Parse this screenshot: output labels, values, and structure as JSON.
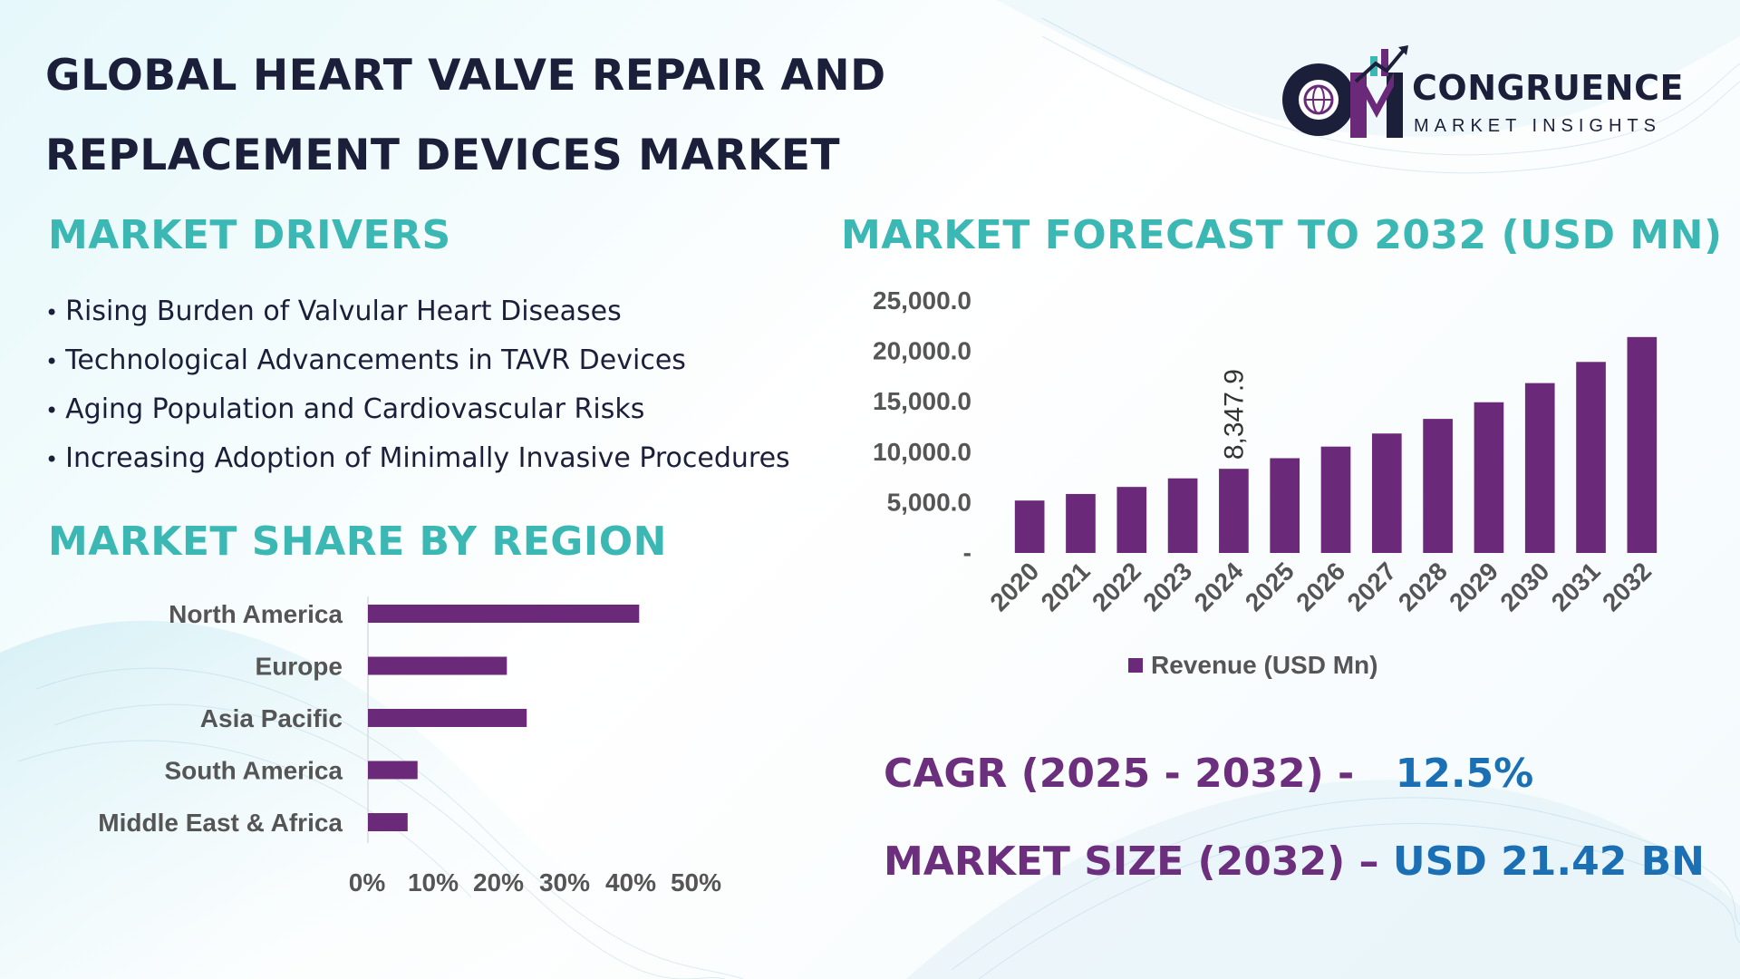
{
  "title": {
    "line1": "GLOBAL HEART VALVE REPAIR AND",
    "line2": "REPLACEMENT DEVICES MARKET"
  },
  "logo": {
    "name": "CONGRUENCE",
    "subtitle": "MARKET INSIGHTS",
    "mark_text": "CM"
  },
  "drivers": {
    "heading": "MARKET DRIVERS",
    "bullet": "•",
    "items": [
      "Rising Burden of Valvular Heart Diseases",
      "Technological Advancements in TAVR Devices",
      "Aging Population and Cardiovascular Risks",
      "Increasing Adoption of Minimally Invasive Procedures"
    ]
  },
  "region": {
    "heading": "MARKET SHARE BY REGION"
  },
  "forecast": {
    "heading": "MARKET FORECAST TO 2032 (USD MN)"
  },
  "kpis": {
    "cagr_label": "CAGR (2025 - 2032) -",
    "cagr_value": "12.5%",
    "size_label": "MARKET SIZE (2032) –",
    "size_value": "USD 21.42 BN"
  },
  "colors": {
    "bar": "#6a2a79",
    "teal": "#3cb8b4",
    "purple_text": "#6c2f7e",
    "blue_text": "#1b6fb4",
    "dark": "#1c1f3a",
    "axis_text": "#555555"
  },
  "chart_data": [
    {
      "type": "bar",
      "orientation": "vertical",
      "title": "MARKET FORECAST TO 2032 (USD MN)",
      "categories": [
        "2020",
        "2021",
        "2022",
        "2023",
        "2024",
        "2025",
        "2026",
        "2027",
        "2028",
        "2029",
        "2030",
        "2031",
        "2032"
      ],
      "series": [
        {
          "name": "Revenue (USD Mn)",
          "values": [
            5200,
            5850,
            6550,
            7400,
            8347.9,
            9400,
            10550,
            11850,
            13300,
            14950,
            16850,
            18950,
            21420
          ]
        }
      ],
      "data_labels": [
        {
          "index": 4,
          "text": "8,347.9"
        }
      ],
      "ylim": [
        0,
        25000
      ],
      "yticks": [
        0,
        5000,
        10000,
        15000,
        20000,
        25000
      ],
      "ytick_labels": [
        "-",
        "5,000.0",
        "10,000.0",
        "15,000.0",
        "20,000.0",
        "25,000.0"
      ],
      "legend": "bottom",
      "legend_label": "Revenue (USD Mn)"
    },
    {
      "type": "bar",
      "orientation": "horizontal",
      "title": "MARKET SHARE BY REGION",
      "categories": [
        "North America",
        "Europe",
        "Asia Pacific",
        "South America",
        "Middle East & Africa"
      ],
      "values": [
        41,
        21,
        24,
        7.5,
        6
      ],
      "unit": "%",
      "xlim": [
        0,
        50
      ],
      "xticks": [
        0,
        10,
        20,
        30,
        40,
        50
      ],
      "xtick_labels": [
        "0%",
        "10%",
        "20%",
        "30%",
        "40%",
        "50%"
      ]
    }
  ]
}
